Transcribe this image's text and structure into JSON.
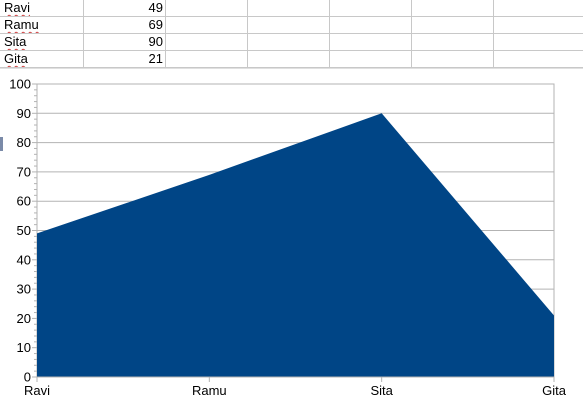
{
  "sheet": {
    "rows": [
      {
        "name": "Ravi",
        "value": "49"
      },
      {
        "name": "Ramu",
        "value": "69"
      },
      {
        "name": "Sita",
        "value": "90"
      },
      {
        "name": "Gita",
        "value": "21"
      }
    ]
  },
  "chart_data": {
    "type": "area",
    "categories": [
      "Ravi",
      "Ramu",
      "Sita",
      "Gita"
    ],
    "series": [
      {
        "values": [
          49,
          69,
          90,
          21
        ],
        "color": "#004586"
      }
    ],
    "ylim": [
      0,
      100
    ],
    "yticks": [
      "0",
      "10",
      "20",
      "30",
      "40",
      "50",
      "60",
      "70",
      "80",
      "90",
      "100"
    ],
    "grid": true,
    "title": "",
    "xlabel": "",
    "ylabel": ""
  }
}
